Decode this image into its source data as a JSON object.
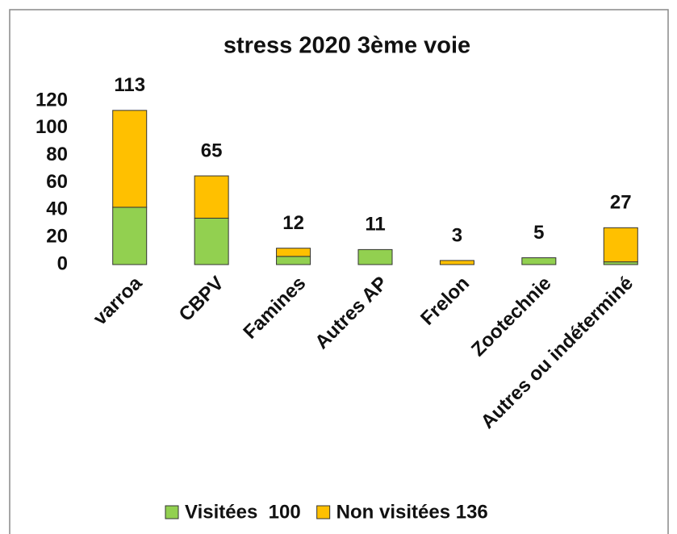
{
  "chart_data": {
    "type": "stacked_bar",
    "title": "stress 2020 3ème voie",
    "categories": [
      "varroa",
      "CBPV",
      "Famines",
      "Autres AP",
      "Frelon",
      "Zootechnie",
      "Autres ou indéterminé"
    ],
    "series": [
      {
        "name": "Visitées  100",
        "color": "#92d050",
        "values": [
          42,
          34,
          6,
          11,
          0,
          5,
          2
        ]
      },
      {
        "name": "Non visitées 136",
        "color": "#ffc000",
        "values": [
          71,
          31,
          6,
          0,
          3,
          0,
          25
        ]
      }
    ],
    "totals": [
      113,
      65,
      12,
      11,
      3,
      5,
      27
    ],
    "ylim": [
      0,
      120
    ],
    "yticks": [
      0,
      20,
      40,
      60,
      80,
      100,
      120
    ],
    "grid": false,
    "legend": "bottom"
  }
}
